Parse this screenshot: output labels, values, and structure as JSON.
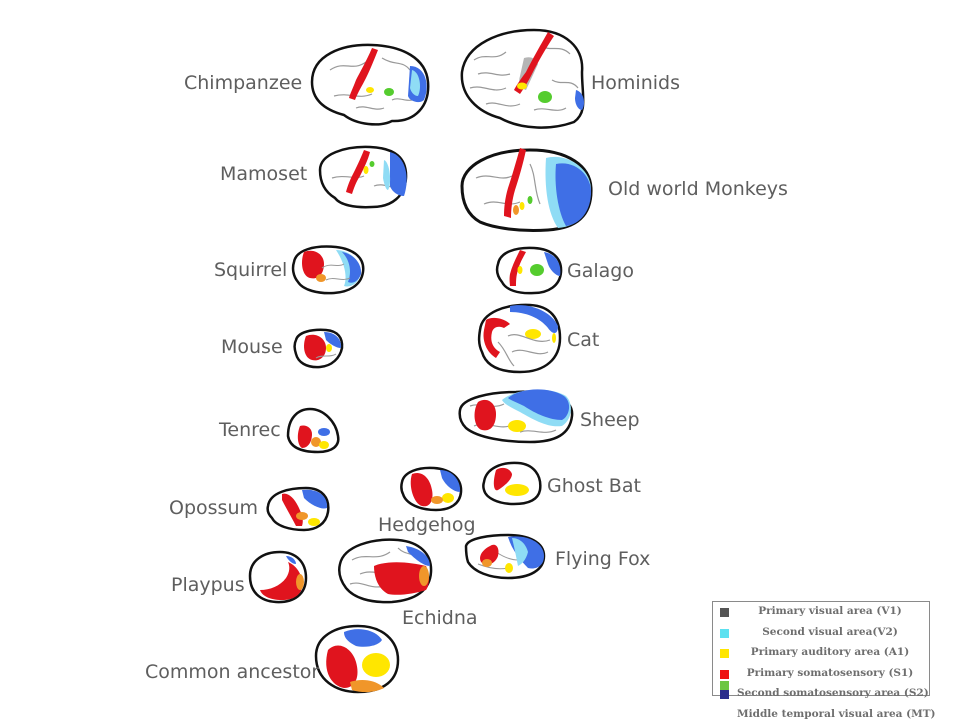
{
  "species": [
    {
      "key": "chimpanzee",
      "label": "Chimpanzee"
    },
    {
      "key": "hominids",
      "label": "Hominids"
    },
    {
      "key": "mamoset",
      "label": "Mamoset"
    },
    {
      "key": "old_world_monkeys",
      "label": "Old world Monkeys"
    },
    {
      "key": "squirrel",
      "label": "Squirrel"
    },
    {
      "key": "galago",
      "label": "Galago"
    },
    {
      "key": "mouse",
      "label": "Mouse"
    },
    {
      "key": "cat",
      "label": "Cat"
    },
    {
      "key": "tenrec",
      "label": "Tenrec"
    },
    {
      "key": "sheep",
      "label": "Sheep"
    },
    {
      "key": "opossum",
      "label": "Opossum"
    },
    {
      "key": "hedgehog",
      "label": "Hedgehog"
    },
    {
      "key": "ghost_bat",
      "label": "Ghost Bat"
    },
    {
      "key": "flying_fox",
      "label": "Flying Fox"
    },
    {
      "key": "platypus",
      "label": "Playpus"
    },
    {
      "key": "echidna",
      "label": "Echidna"
    },
    {
      "key": "common_ancestor",
      "label": "Common ancestor"
    }
  ],
  "legend": [
    {
      "label": "Primary visual area (V1)",
      "color": "#555555"
    },
    {
      "label": "Second visual area(V2)",
      "color": "#5ce1f0"
    },
    {
      "label": "Primary auditory area (A1)",
      "color": "#ffe600"
    },
    {
      "label": "Primary somatosensory (S1)",
      "color": "#ee1111"
    },
    {
      "label": "Second somatosensory area (S2)",
      "color": "#2b2d8c"
    },
    {
      "label": "Middle temporal visual area (MT)",
      "color": "#6cc644"
    }
  ],
  "area_colors": {
    "s1_red": "#e0141e",
    "a1_yellow": "#ffe600",
    "v1_blue": "#3f6fe6",
    "v2_cyan": "#8fdcf5",
    "s2_orange": "#f0962a",
    "mt_green": "#55cc2e",
    "outline": "#111111",
    "sulci": "#999999"
  }
}
